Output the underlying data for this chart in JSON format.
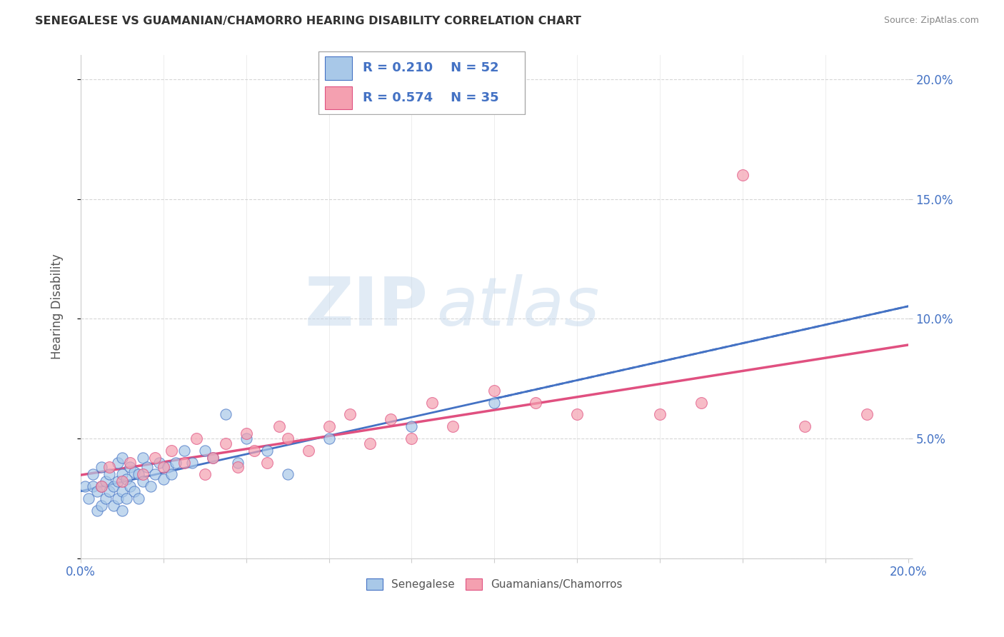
{
  "title": "SENEGALESE VS GUAMANIAN/CHAMORRO HEARING DISABILITY CORRELATION CHART",
  "source": "Source: ZipAtlas.com",
  "ylabel": "Hearing Disability",
  "xlim": [
    0.0,
    0.2
  ],
  "ylim": [
    0.0,
    0.21
  ],
  "xticks": [
    0.0,
    0.02,
    0.04,
    0.06,
    0.08,
    0.1,
    0.12,
    0.14,
    0.16,
    0.18,
    0.2
  ],
  "yticks": [
    0.0,
    0.05,
    0.1,
    0.15,
    0.2
  ],
  "xtick_labels": [
    "0.0%",
    "",
    "",
    "",
    "",
    "",
    "",
    "",
    "",
    "",
    "20.0%"
  ],
  "ytick_labels_right": [
    "",
    "5.0%",
    "10.0%",
    "15.0%",
    "20.0%"
  ],
  "color_blue": "#a8c8e8",
  "color_pink": "#f4a0b0",
  "color_blue_line": "#4472c4",
  "color_pink_line": "#e05080",
  "color_tick": "#4472c4",
  "watermark_zip": "ZIP",
  "watermark_atlas": "atlas",
  "senegalese_x": [
    0.001,
    0.002,
    0.003,
    0.003,
    0.004,
    0.004,
    0.005,
    0.005,
    0.005,
    0.006,
    0.006,
    0.007,
    0.007,
    0.008,
    0.008,
    0.009,
    0.009,
    0.009,
    0.01,
    0.01,
    0.01,
    0.01,
    0.011,
    0.011,
    0.012,
    0.012,
    0.013,
    0.013,
    0.014,
    0.014,
    0.015,
    0.015,
    0.016,
    0.017,
    0.018,
    0.019,
    0.02,
    0.021,
    0.022,
    0.023,
    0.025,
    0.027,
    0.03,
    0.032,
    0.035,
    0.038,
    0.04,
    0.045,
    0.05,
    0.06,
    0.08,
    0.1
  ],
  "senegalese_y": [
    0.03,
    0.025,
    0.03,
    0.035,
    0.02,
    0.028,
    0.022,
    0.03,
    0.038,
    0.025,
    0.032,
    0.028,
    0.035,
    0.022,
    0.03,
    0.025,
    0.032,
    0.04,
    0.02,
    0.028,
    0.035,
    0.042,
    0.025,
    0.033,
    0.03,
    0.038,
    0.028,
    0.036,
    0.025,
    0.035,
    0.032,
    0.042,
    0.038,
    0.03,
    0.035,
    0.04,
    0.033,
    0.038,
    0.035,
    0.04,
    0.045,
    0.04,
    0.045,
    0.042,
    0.06,
    0.04,
    0.05,
    0.045,
    0.035,
    0.05,
    0.055,
    0.065
  ],
  "guamanian_x": [
    0.005,
    0.007,
    0.01,
    0.012,
    0.015,
    0.018,
    0.02,
    0.022,
    0.025,
    0.028,
    0.03,
    0.032,
    0.035,
    0.038,
    0.04,
    0.042,
    0.045,
    0.048,
    0.05,
    0.055,
    0.06,
    0.065,
    0.07,
    0.075,
    0.08,
    0.085,
    0.09,
    0.1,
    0.11,
    0.12,
    0.14,
    0.15,
    0.16,
    0.175,
    0.19
  ],
  "guamanian_y": [
    0.03,
    0.038,
    0.032,
    0.04,
    0.035,
    0.042,
    0.038,
    0.045,
    0.04,
    0.05,
    0.035,
    0.042,
    0.048,
    0.038,
    0.052,
    0.045,
    0.04,
    0.055,
    0.05,
    0.045,
    0.055,
    0.06,
    0.048,
    0.058,
    0.05,
    0.065,
    0.055,
    0.07,
    0.065,
    0.06,
    0.06,
    0.065,
    0.16,
    0.055,
    0.06
  ]
}
